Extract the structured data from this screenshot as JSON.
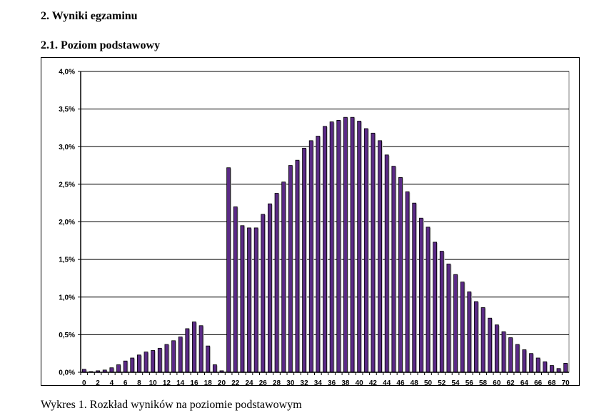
{
  "document": {
    "section_title": "2. Wyniki egzaminu",
    "subsection_title": "2.1. Poziom podstawowy",
    "caption": "Wykres 1. Rozkład wyników na poziomie podstawowym"
  },
  "chart_data": {
    "type": "bar",
    "title": "",
    "xlabel": "",
    "ylabel": "",
    "x": [
      0,
      1,
      2,
      3,
      4,
      5,
      6,
      7,
      8,
      9,
      10,
      11,
      12,
      13,
      14,
      15,
      16,
      17,
      18,
      19,
      20,
      21,
      22,
      23,
      24,
      25,
      26,
      27,
      28,
      29,
      30,
      31,
      32,
      33,
      34,
      35,
      36,
      37,
      38,
      39,
      40,
      41,
      42,
      43,
      44,
      45,
      46,
      47,
      48,
      49,
      50,
      51,
      52,
      53,
      54,
      55,
      56,
      57,
      58,
      59,
      60,
      61,
      62,
      63,
      64,
      65,
      66,
      67,
      68,
      69,
      70
    ],
    "values": [
      0.04,
      0.01,
      0.02,
      0.03,
      0.06,
      0.1,
      0.15,
      0.19,
      0.23,
      0.27,
      0.29,
      0.32,
      0.37,
      0.42,
      0.47,
      0.58,
      0.67,
      0.62,
      0.35,
      0.1,
      0.02,
      2.72,
      2.2,
      1.95,
      1.92,
      1.92,
      2.1,
      2.24,
      2.38,
      2.53,
      2.75,
      2.82,
      2.98,
      3.08,
      3.14,
      3.27,
      3.33,
      3.35,
      3.39,
      3.39,
      3.34,
      3.24,
      3.18,
      3.08,
      2.89,
      2.74,
      2.59,
      2.4,
      2.25,
      2.05,
      1.93,
      1.73,
      1.61,
      1.44,
      1.3,
      1.2,
      1.07,
      0.94,
      0.86,
      0.72,
      0.63,
      0.54,
      0.46,
      0.37,
      0.3,
      0.25,
      0.19,
      0.14,
      0.09,
      0.05,
      0.12
    ],
    "value_unit": "%",
    "x_tick_labels": [
      "0",
      "2",
      "4",
      "6",
      "8",
      "10",
      "12",
      "14",
      "16",
      "18",
      "20",
      "22",
      "24",
      "26",
      "28",
      "30",
      "32",
      "34",
      "36",
      "38",
      "40",
      "42",
      "44",
      "46",
      "48",
      "50",
      "52",
      "54",
      "56",
      "58",
      "60",
      "62",
      "64",
      "66",
      "68",
      "70"
    ],
    "y_tick_labels": [
      "0,0%",
      "0,5%",
      "1,0%",
      "1,5%",
      "2,0%",
      "2,5%",
      "3,0%",
      "3,5%",
      "4,0%"
    ],
    "ylim": [
      0,
      4.0
    ],
    "grid": true,
    "legend": "none",
    "bar_color": "#5b2a86"
  }
}
